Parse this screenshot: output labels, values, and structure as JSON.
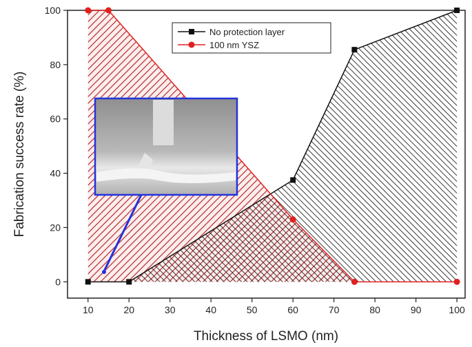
{
  "chart_data": {
    "type": "line",
    "xlabel": "Thickness of LSMO (nm)",
    "ylabel": "Fabrication success rate (%)",
    "xlim": [
      5,
      102
    ],
    "ylim": [
      -6,
      100
    ],
    "xticks": [
      10,
      20,
      30,
      40,
      50,
      60,
      70,
      80,
      90,
      100
    ],
    "yticks": [
      0,
      20,
      40,
      60,
      80,
      100
    ],
    "area_fill": true,
    "legend": "top",
    "series": [
      {
        "name": "No protection layer",
        "color": "#111111",
        "marker": "square",
        "x": [
          10,
          20,
          60,
          75,
          100
        ],
        "values": [
          0,
          0,
          37.5,
          85.5,
          100
        ]
      },
      {
        "name": "100 nm YSZ",
        "color": "#e02020",
        "marker": "circle",
        "x": [
          10,
          15,
          60,
          75,
          100
        ],
        "values": [
          100,
          100,
          23,
          0,
          0
        ]
      }
    ]
  }
}
